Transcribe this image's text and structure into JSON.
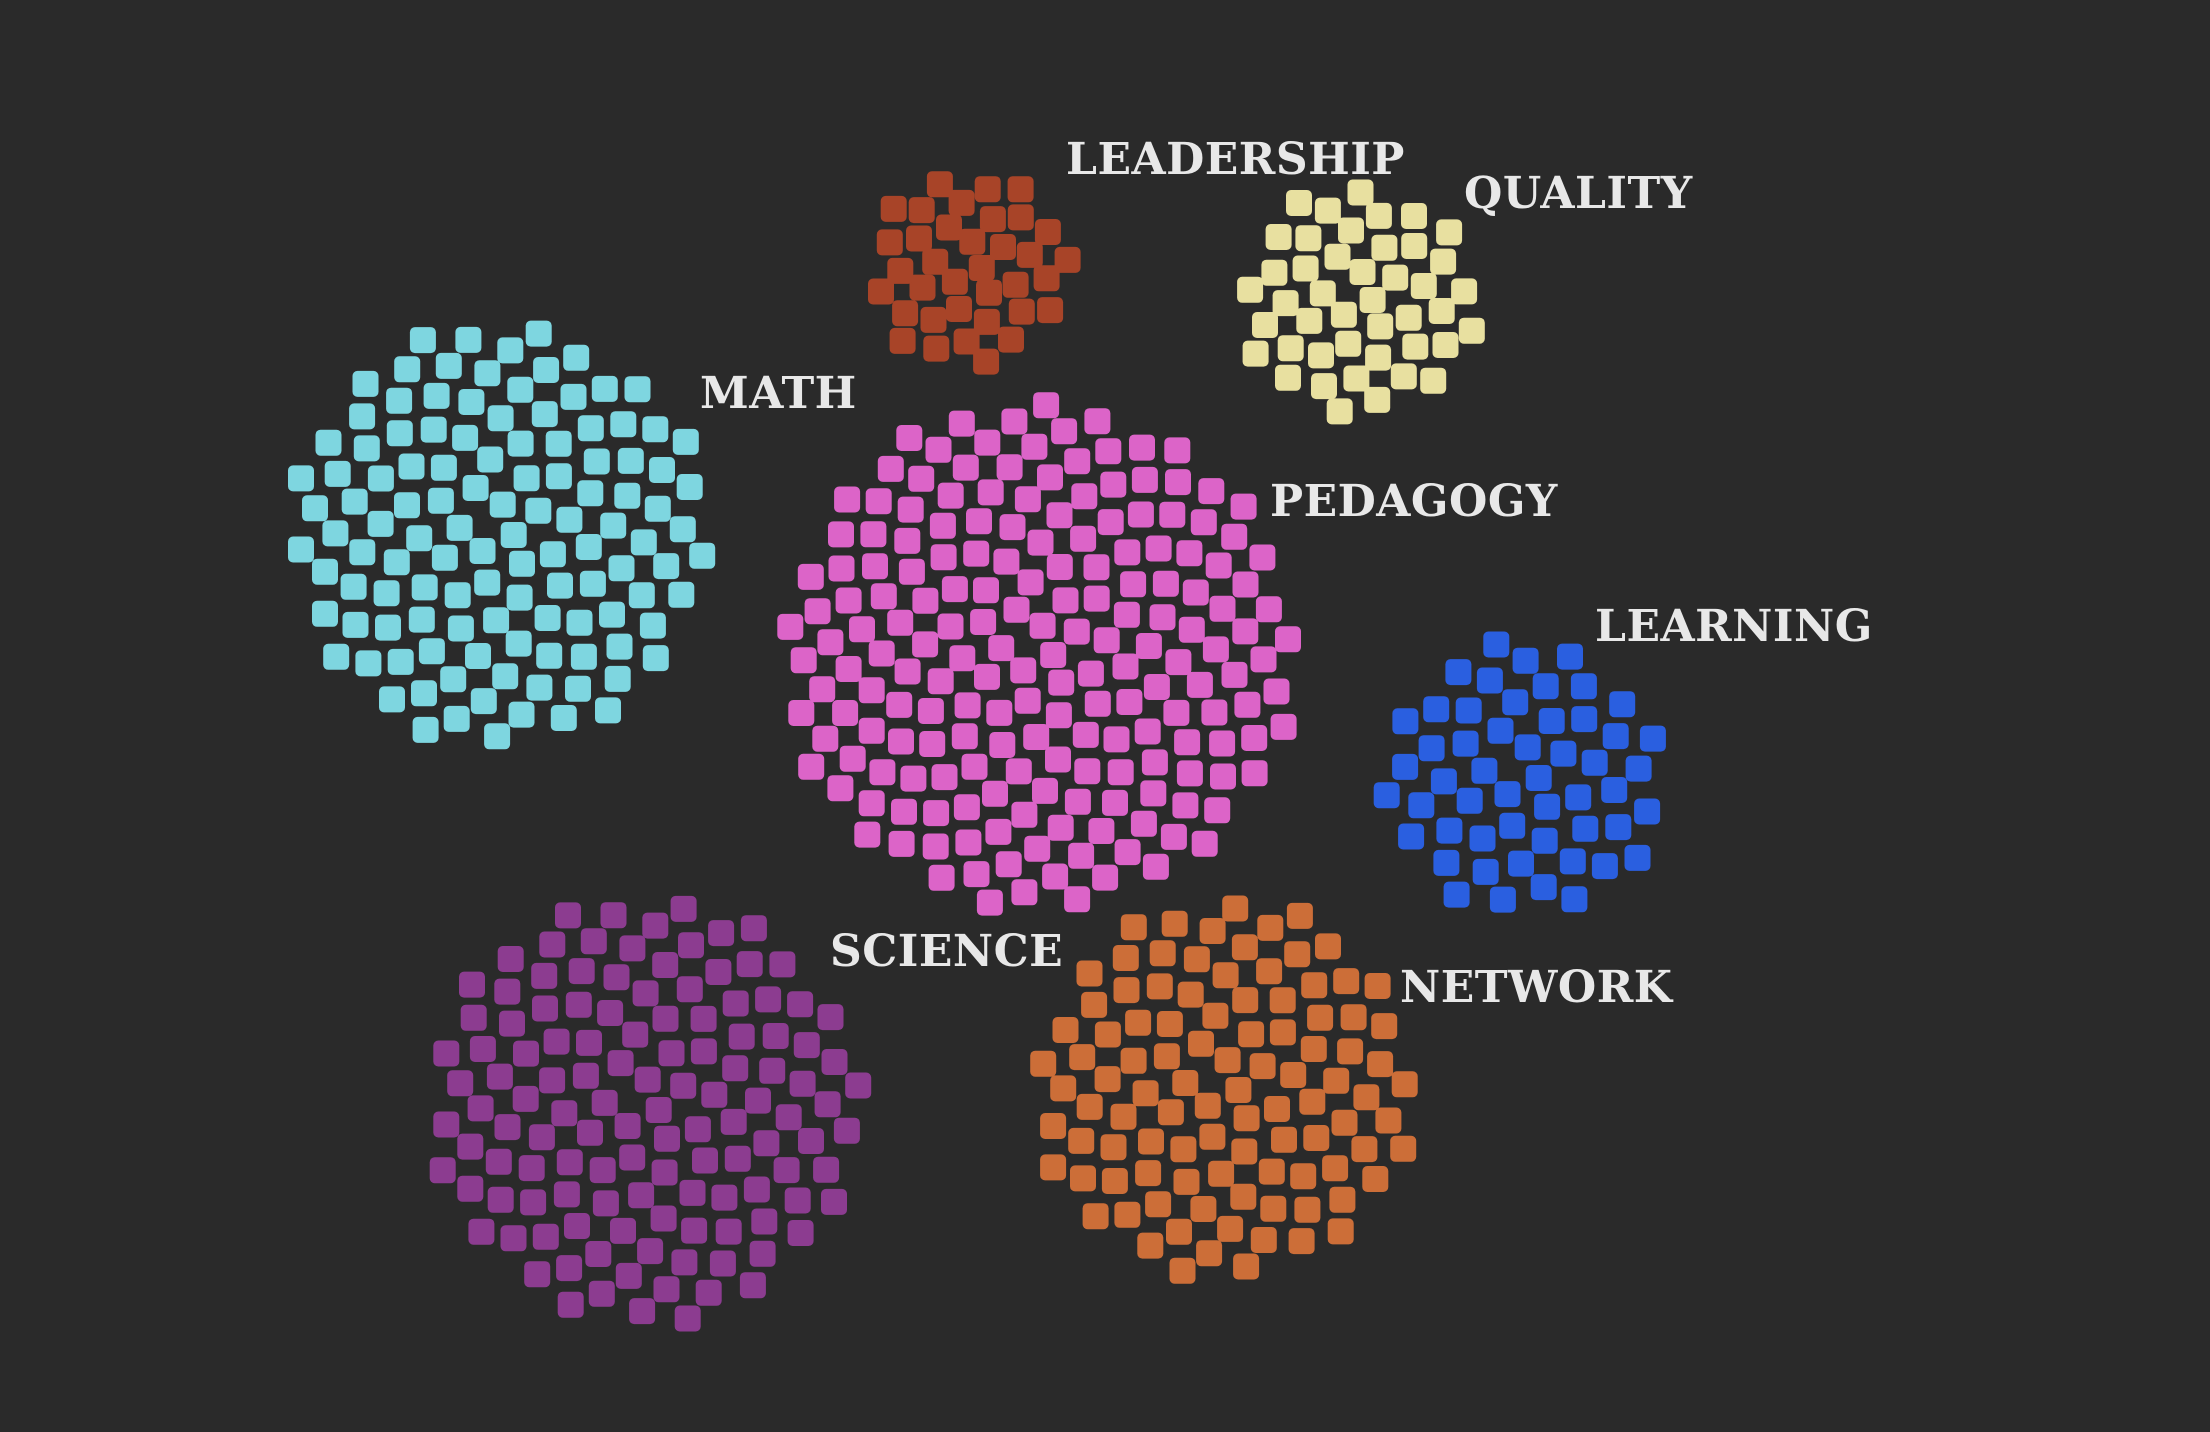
{
  "clusters": [
    {
      "id": "leadership",
      "label": "LEADERSHIP",
      "color": "#a84428",
      "count": 36
    },
    {
      "id": "quality",
      "label": "QUALITY",
      "color": "#e8e0a0",
      "count": 44
    },
    {
      "id": "math",
      "label": "MATH",
      "color": "#7ed6e0",
      "count": 118
    },
    {
      "id": "pedagogy",
      "label": "PEDAGOGY",
      "color": "#dc64c8",
      "count": 188
    },
    {
      "id": "learning",
      "label": "LEARNING",
      "color": "#2a5fe0",
      "count": 52
    },
    {
      "id": "science",
      "label": "SCIENCE",
      "color": "#8c3c90",
      "count": 124
    },
    {
      "id": "network",
      "label": "NETWORK",
      "color": "#cc6e38",
      "count": 100
    }
  ]
}
